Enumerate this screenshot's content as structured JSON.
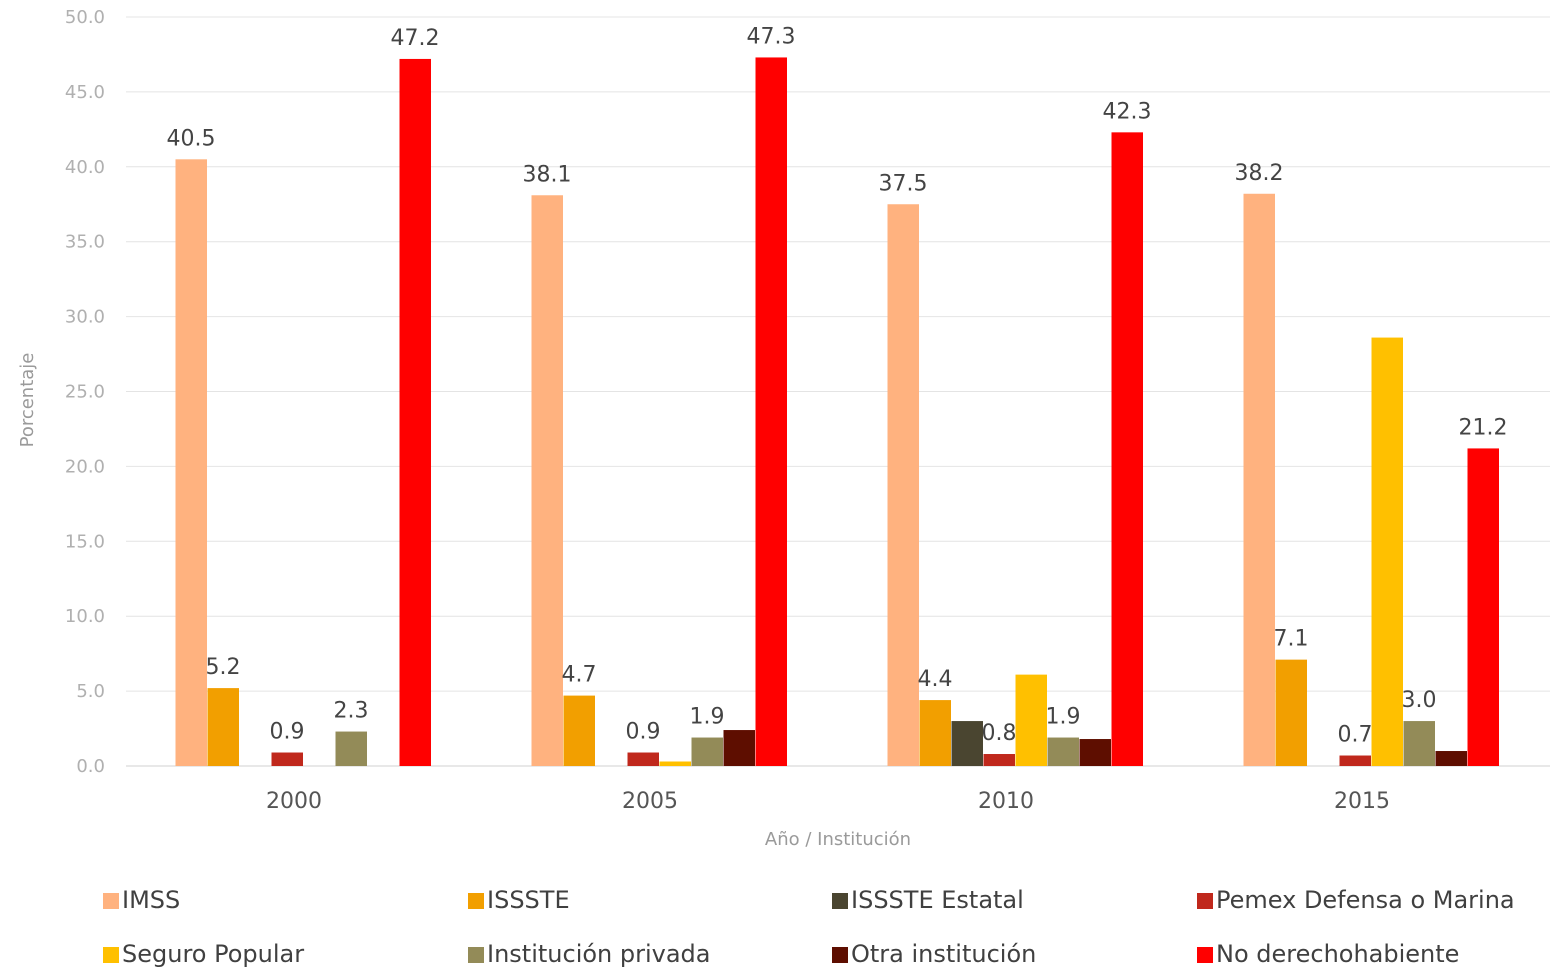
{
  "chart_data": {
    "type": "bar",
    "categories": [
      "2000",
      "2005",
      "2010",
      "2015"
    ],
    "xlabel": "Año / Institución",
    "ylabel": "Porcentaje",
    "ylim": [
      0,
      50
    ],
    "ytick_step": 5,
    "ytick_labels": [
      "0.0",
      "5.0",
      "10.0",
      "15.0",
      "20.0",
      "25.0",
      "30.0",
      "35.0",
      "40.0",
      "45.0",
      "50.0"
    ],
    "grid": true,
    "legend_position": "bottom",
    "series": [
      {
        "name": "IMSS",
        "color": "#FFB27F",
        "values": [
          40.5,
          38.1,
          37.5,
          38.2
        ],
        "labels": [
          "40.5",
          "38.1",
          "37.5",
          "38.2"
        ]
      },
      {
        "name": "ISSSTE",
        "color": "#F29F00",
        "values": [
          5.2,
          4.7,
          4.4,
          7.1
        ],
        "labels": [
          "5.2",
          "4.7",
          "4.4",
          "7.1"
        ]
      },
      {
        "name": "ISSSTE Estatal",
        "color": "#4A4530",
        "values": [
          0,
          0,
          3.0,
          0
        ],
        "labels": [
          "",
          "",
          "",
          ""
        ]
      },
      {
        "name": "Pemex Defensa o Marina",
        "color": "#C0281C",
        "values": [
          0.9,
          0.9,
          0.8,
          0.7
        ],
        "labels": [
          "0.9",
          "0.9",
          "0.8",
          "0.7"
        ]
      },
      {
        "name": "Seguro Popular",
        "color": "#FFC000",
        "values": [
          0,
          0.3,
          6.1,
          28.6
        ],
        "labels": [
          "",
          "",
          "",
          ""
        ]
      },
      {
        "name": "Institución privada",
        "color": "#938B58",
        "values": [
          2.3,
          1.9,
          1.9,
          3.0
        ],
        "labels": [
          "2.3",
          "1.9",
          "1.9",
          "3.0"
        ]
      },
      {
        "name": "Otra institución",
        "color": "#5E0E00",
        "values": [
          0,
          2.4,
          1.8,
          1.0
        ],
        "labels": [
          "",
          "",
          "",
          ""
        ]
      },
      {
        "name": "No derechohabiente",
        "color": "#FF0000",
        "values": [
          47.2,
          47.3,
          42.3,
          21.2
        ],
        "labels": [
          "47.2",
          "47.3",
          "42.3",
          "21.2"
        ]
      }
    ]
  }
}
